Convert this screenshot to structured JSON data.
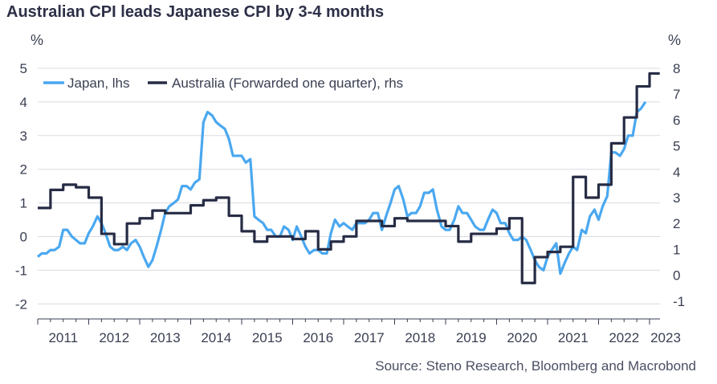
{
  "title": "Australian CPI leads Japanese CPI by 3-4 months",
  "source": "Source: Steno Research, Bloomberg and Macrobond",
  "chart_data": {
    "type": "line",
    "title": "Australian CPI leads Japanese CPI by 3-4 months",
    "y_left": {
      "unit": "%",
      "ylim": [
        -2.3,
        5.3
      ],
      "ticks": [
        "5",
        "4",
        "3",
        "2",
        "1",
        "0",
        "-1",
        "-2"
      ]
    },
    "y_right": {
      "unit": "%",
      "ylim": [
        -1.3,
        8.3
      ],
      "ticks": [
        "8",
        "7",
        "6",
        "5",
        "4",
        "3",
        "2",
        "1",
        "0",
        "-1"
      ]
    },
    "x_ticks": [
      "2011",
      "2012",
      "2013",
      "2014",
      "2015",
      "2016",
      "2017",
      "2018",
      "2019",
      "2020",
      "2021",
      "2022",
      "2023"
    ],
    "xlim": [
      2010.95,
      2023.3
    ],
    "grid": true,
    "legend_position": "top-left",
    "series": [
      {
        "name": "Japan, lhs",
        "axis": "left",
        "color": "#4aa8f0",
        "step": false,
        "points": [
          [
            2011.0,
            -0.6
          ],
          [
            2011.08,
            -0.5
          ],
          [
            2011.17,
            -0.5
          ],
          [
            2011.25,
            -0.4
          ],
          [
            2011.33,
            -0.4
          ],
          [
            2011.42,
            -0.3
          ],
          [
            2011.5,
            0.2
          ],
          [
            2011.58,
            0.2
          ],
          [
            2011.67,
            0.0
          ],
          [
            2011.75,
            -0.1
          ],
          [
            2011.83,
            -0.2
          ],
          [
            2011.92,
            -0.2
          ],
          [
            2012.0,
            0.1
          ],
          [
            2012.08,
            0.3
          ],
          [
            2012.17,
            0.6
          ],
          [
            2012.25,
            0.4
          ],
          [
            2012.33,
            0.1
          ],
          [
            2012.42,
            -0.3
          ],
          [
            2012.5,
            -0.4
          ],
          [
            2012.58,
            -0.4
          ],
          [
            2012.67,
            -0.3
          ],
          [
            2012.75,
            -0.4
          ],
          [
            2012.83,
            -0.2
          ],
          [
            2012.92,
            -0.1
          ],
          [
            2013.0,
            -0.3
          ],
          [
            2013.08,
            -0.6
          ],
          [
            2013.17,
            -0.9
          ],
          [
            2013.25,
            -0.7
          ],
          [
            2013.33,
            -0.3
          ],
          [
            2013.42,
            0.2
          ],
          [
            2013.5,
            0.7
          ],
          [
            2013.58,
            0.9
          ],
          [
            2013.67,
            1.0
          ],
          [
            2013.75,
            1.1
          ],
          [
            2013.83,
            1.5
          ],
          [
            2013.92,
            1.5
          ],
          [
            2014.0,
            1.4
          ],
          [
            2014.08,
            1.6
          ],
          [
            2014.17,
            1.7
          ],
          [
            2014.25,
            3.4
          ],
          [
            2014.33,
            3.7
          ],
          [
            2014.42,
            3.6
          ],
          [
            2014.5,
            3.4
          ],
          [
            2014.58,
            3.3
          ],
          [
            2014.67,
            3.2
          ],
          [
            2014.75,
            2.9
          ],
          [
            2014.83,
            2.4
          ],
          [
            2014.92,
            2.4
          ],
          [
            2015.0,
            2.4
          ],
          [
            2015.08,
            2.2
          ],
          [
            2015.17,
            2.3
          ],
          [
            2015.25,
            0.6
          ],
          [
            2015.33,
            0.5
          ],
          [
            2015.42,
            0.4
          ],
          [
            2015.5,
            0.2
          ],
          [
            2015.58,
            0.2
          ],
          [
            2015.67,
            0.0
          ],
          [
            2015.75,
            0.0
          ],
          [
            2015.83,
            0.3
          ],
          [
            2015.92,
            0.2
          ],
          [
            2016.0,
            -0.1
          ],
          [
            2016.08,
            0.3
          ],
          [
            2016.17,
            0.0
          ],
          [
            2016.25,
            -0.3
          ],
          [
            2016.33,
            -0.5
          ],
          [
            2016.42,
            -0.4
          ],
          [
            2016.5,
            -0.4
          ],
          [
            2016.58,
            -0.5
          ],
          [
            2016.67,
            -0.5
          ],
          [
            2016.75,
            0.1
          ],
          [
            2016.83,
            0.5
          ],
          [
            2016.92,
            0.3
          ],
          [
            2017.0,
            0.4
          ],
          [
            2017.08,
            0.3
          ],
          [
            2017.17,
            0.2
          ],
          [
            2017.25,
            0.4
          ],
          [
            2017.33,
            0.4
          ],
          [
            2017.42,
            0.4
          ],
          [
            2017.5,
            0.5
          ],
          [
            2017.58,
            0.7
          ],
          [
            2017.67,
            0.7
          ],
          [
            2017.75,
            0.2
          ],
          [
            2017.83,
            0.6
          ],
          [
            2017.92,
            1.0
          ],
          [
            2018.0,
            1.4
          ],
          [
            2018.08,
            1.5
          ],
          [
            2018.17,
            1.1
          ],
          [
            2018.25,
            0.6
          ],
          [
            2018.33,
            0.7
          ],
          [
            2018.42,
            0.7
          ],
          [
            2018.5,
            0.9
          ],
          [
            2018.58,
            1.3
          ],
          [
            2018.67,
            1.3
          ],
          [
            2018.75,
            1.4
          ],
          [
            2018.83,
            0.8
          ],
          [
            2018.92,
            0.3
          ],
          [
            2019.0,
            0.2
          ],
          [
            2019.08,
            0.2
          ],
          [
            2019.17,
            0.5
          ],
          [
            2019.25,
            0.9
          ],
          [
            2019.33,
            0.7
          ],
          [
            2019.42,
            0.7
          ],
          [
            2019.5,
            0.5
          ],
          [
            2019.58,
            0.3
          ],
          [
            2019.67,
            0.2
          ],
          [
            2019.75,
            0.2
          ],
          [
            2019.83,
            0.5
          ],
          [
            2019.92,
            0.8
          ],
          [
            2020.0,
            0.7
          ],
          [
            2020.08,
            0.4
          ],
          [
            2020.17,
            0.4
          ],
          [
            2020.25,
            0.1
          ],
          [
            2020.33,
            -0.1
          ],
          [
            2020.42,
            -0.1
          ],
          [
            2020.5,
            0.0
          ],
          [
            2020.58,
            -0.1
          ],
          [
            2020.67,
            -0.4
          ],
          [
            2020.75,
            -0.7
          ],
          [
            2020.83,
            -0.9
          ],
          [
            2020.92,
            -1.0
          ],
          [
            2021.0,
            -0.6
          ],
          [
            2021.08,
            -0.4
          ],
          [
            2021.17,
            -0.2
          ],
          [
            2021.25,
            -1.1
          ],
          [
            2021.33,
            -0.8
          ],
          [
            2021.42,
            -0.5
          ],
          [
            2021.5,
            -0.3
          ],
          [
            2021.58,
            -0.4
          ],
          [
            2021.67,
            0.2
          ],
          [
            2021.75,
            0.1
          ],
          [
            2021.83,
            0.6
          ],
          [
            2021.92,
            0.8
          ],
          [
            2022.0,
            0.5
          ],
          [
            2022.08,
            0.9
          ],
          [
            2022.17,
            1.2
          ],
          [
            2022.25,
            2.5
          ],
          [
            2022.33,
            2.5
          ],
          [
            2022.42,
            2.4
          ],
          [
            2022.5,
            2.6
          ],
          [
            2022.58,
            3.0
          ],
          [
            2022.67,
            3.0
          ],
          [
            2022.75,
            3.7
          ],
          [
            2022.83,
            3.8
          ],
          [
            2022.92,
            4.0
          ]
        ]
      },
      {
        "name": "Australia (Forwarded one quarter), rhs",
        "axis": "right",
        "color": "#272c45",
        "step": true,
        "points": [
          [
            2011.0,
            2.6
          ],
          [
            2011.25,
            3.3
          ],
          [
            2011.5,
            3.5
          ],
          [
            2011.75,
            3.4
          ],
          [
            2012.0,
            3.0
          ],
          [
            2012.25,
            1.6
          ],
          [
            2012.5,
            1.2
          ],
          [
            2012.75,
            2.0
          ],
          [
            2013.0,
            2.2
          ],
          [
            2013.25,
            2.5
          ],
          [
            2013.5,
            2.4
          ],
          [
            2013.75,
            2.4
          ],
          [
            2014.0,
            2.7
          ],
          [
            2014.25,
            2.9
          ],
          [
            2014.5,
            3.0
          ],
          [
            2014.75,
            2.3
          ],
          [
            2015.0,
            1.7
          ],
          [
            2015.25,
            1.3
          ],
          [
            2015.5,
            1.5
          ],
          [
            2015.75,
            1.5
          ],
          [
            2016.0,
            1.4
          ],
          [
            2016.25,
            1.7
          ],
          [
            2016.5,
            1.0
          ],
          [
            2016.75,
            1.3
          ],
          [
            2017.0,
            1.5
          ],
          [
            2017.25,
            2.1
          ],
          [
            2017.5,
            2.1
          ],
          [
            2017.75,
            1.9
          ],
          [
            2018.0,
            2.2
          ],
          [
            2018.25,
            2.1
          ],
          [
            2018.5,
            2.1
          ],
          [
            2018.75,
            2.1
          ],
          [
            2019.0,
            1.9
          ],
          [
            2019.25,
            1.3
          ],
          [
            2019.5,
            1.6
          ],
          [
            2019.75,
            1.6
          ],
          [
            2020.0,
            1.8
          ],
          [
            2020.25,
            2.2
          ],
          [
            2020.5,
            -0.3
          ],
          [
            2020.75,
            0.7
          ],
          [
            2021.0,
            0.9
          ],
          [
            2021.25,
            1.1
          ],
          [
            2021.5,
            3.8
          ],
          [
            2021.75,
            3.0
          ],
          [
            2022.0,
            3.5
          ],
          [
            2022.25,
            5.1
          ],
          [
            2022.5,
            6.1
          ],
          [
            2022.75,
            7.3
          ],
          [
            2023.0,
            7.8
          ],
          [
            2023.2,
            7.8
          ]
        ]
      }
    ]
  }
}
